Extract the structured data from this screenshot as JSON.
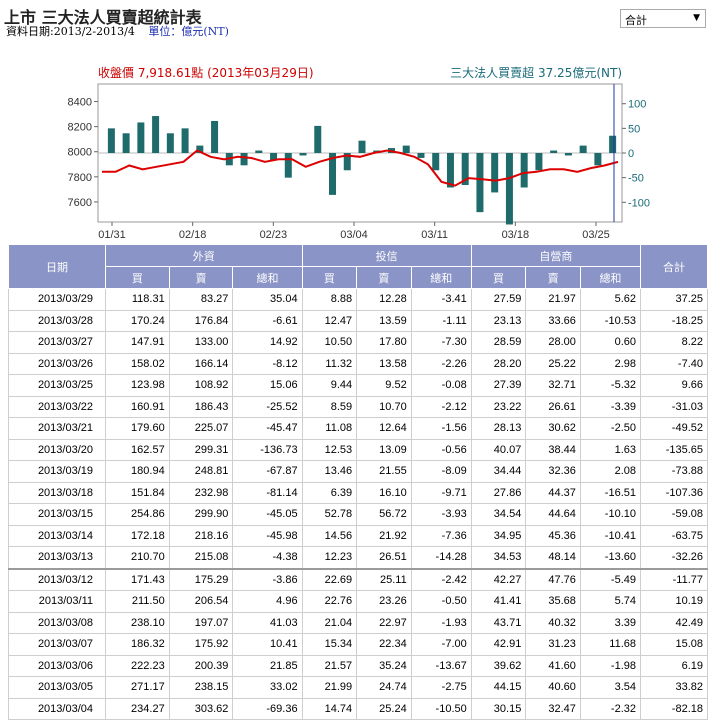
{
  "header": {
    "title": "上市 三大法人買賣超統計表",
    "date_range": "資料日期:2013/2-2013/4",
    "unit": "單位：億元(NT)",
    "select_value": "合計"
  },
  "chart_data": {
    "type": "bar",
    "left_legend": "收盤價 7,918.61點 (2013年03月29日)",
    "right_legend": "三大法人買賣超 37.25億元(NT)",
    "x_ticks": [
      "01/31",
      "02/18",
      "02/23",
      "03/04",
      "03/11",
      "03/18",
      "03/25"
    ],
    "left_axis": {
      "ticks": [
        8400,
        8200,
        8000,
        7800,
        7600
      ],
      "range": [
        7440,
        8540
      ]
    },
    "right_axis": {
      "ticks": [
        100,
        50,
        0,
        -50,
        -100
      ],
      "range": [
        -140,
        140
      ]
    },
    "bar_values": [
      50,
      40,
      62,
      75,
      40,
      50,
      15,
      65,
      -25,
      -25,
      5,
      -15,
      -50,
      -5,
      55,
      -85,
      -35,
      25,
      5,
      10,
      15,
      -10,
      -35,
      -70,
      -65,
      -120,
      -80,
      -145,
      -70,
      -35,
      5,
      -5,
      15,
      -25,
      35
    ],
    "price_values": [
      7840,
      7840,
      7890,
      7860,
      7880,
      7900,
      7920,
      8010,
      7960,
      7940,
      7960,
      7950,
      7920,
      7940,
      7940,
      7880,
      7920,
      7950,
      7970,
      7960,
      7990,
      8010,
      7990,
      7960,
      7900,
      7760,
      7730,
      7790,
      7780,
      7770,
      7790,
      7830,
      7840,
      7860,
      7860,
      7840,
      7870,
      7890,
      7919
    ],
    "colors": {
      "bar": "#1f6b6b",
      "price": "#dd0000",
      "left_legend": "#cc0000",
      "right_legend": "#1a6b7a"
    }
  },
  "table": {
    "groups": [
      "外資",
      "投信",
      "自營商"
    ],
    "col_date": "日期",
    "col_total": "合計",
    "subcols": [
      "買",
      "賣",
      "總和"
    ],
    "rows": [
      [
        "2013/03/29",
        "118.31",
        "83.27",
        "35.04",
        "8.88",
        "12.28",
        "-3.41",
        "27.59",
        "21.97",
        "5.62",
        "37.25"
      ],
      [
        "2013/03/28",
        "170.24",
        "176.84",
        "-6.61",
        "12.47",
        "13.59",
        "-1.11",
        "23.13",
        "33.66",
        "-10.53",
        "-18.25"
      ],
      [
        "2013/03/27",
        "147.91",
        "133.00",
        "14.92",
        "10.50",
        "17.80",
        "-7.30",
        "28.59",
        "28.00",
        "0.60",
        "8.22"
      ],
      [
        "2013/03/26",
        "158.02",
        "166.14",
        "-8.12",
        "11.32",
        "13.58",
        "-2.26",
        "28.20",
        "25.22",
        "2.98",
        "-7.40"
      ],
      [
        "2013/03/25",
        "123.98",
        "108.92",
        "15.06",
        "9.44",
        "9.52",
        "-0.08",
        "27.39",
        "32.71",
        "-5.32",
        "9.66"
      ],
      [
        "2013/03/22",
        "160.91",
        "186.43",
        "-25.52",
        "8.59",
        "10.70",
        "-2.12",
        "23.22",
        "26.61",
        "-3.39",
        "-31.03"
      ],
      [
        "2013/03/21",
        "179.60",
        "225.07",
        "-45.47",
        "11.08",
        "12.64",
        "-1.56",
        "28.13",
        "30.62",
        "-2.50",
        "-49.52"
      ],
      [
        "2013/03/20",
        "162.57",
        "299.31",
        "-136.73",
        "12.53",
        "13.09",
        "-0.56",
        "40.07",
        "38.44",
        "1.63",
        "-135.65"
      ],
      [
        "2013/03/19",
        "180.94",
        "248.81",
        "-67.87",
        "13.46",
        "21.55",
        "-8.09",
        "34.44",
        "32.36",
        "2.08",
        "-73.88"
      ],
      [
        "2013/03/18",
        "151.84",
        "232.98",
        "-81.14",
        "6.39",
        "16.10",
        "-9.71",
        "27.86",
        "44.37",
        "-16.51",
        "-107.36"
      ],
      [
        "2013/03/15",
        "254.86",
        "299.90",
        "-45.05",
        "52.78",
        "56.72",
        "-3.93",
        "34.54",
        "44.64",
        "-10.10",
        "-59.08"
      ],
      [
        "2013/03/14",
        "172.18",
        "218.16",
        "-45.98",
        "14.56",
        "21.92",
        "-7.36",
        "34.95",
        "45.36",
        "-10.41",
        "-63.75"
      ],
      [
        "2013/03/13",
        "210.70",
        "215.08",
        "-4.38",
        "12.23",
        "26.51",
        "-14.28",
        "34.53",
        "48.14",
        "-13.60",
        "-32.26"
      ],
      [
        "2013/03/12",
        "171.43",
        "175.29",
        "-3.86",
        "22.69",
        "25.11",
        "-2.42",
        "42.27",
        "47.76",
        "-5.49",
        "-11.77"
      ],
      [
        "2013/03/11",
        "211.50",
        "206.54",
        "4.96",
        "22.76",
        "23.26",
        "-0.50",
        "41.41",
        "35.68",
        "5.74",
        "10.19"
      ],
      [
        "2013/03/08",
        "238.10",
        "197.07",
        "41.03",
        "21.04",
        "22.97",
        "-1.93",
        "43.71",
        "40.32",
        "3.39",
        "42.49"
      ],
      [
        "2013/03/07",
        "186.32",
        "175.92",
        "10.41",
        "15.34",
        "22.34",
        "-7.00",
        "42.91",
        "31.23",
        "11.68",
        "15.08"
      ],
      [
        "2013/03/06",
        "222.23",
        "200.39",
        "21.85",
        "21.57",
        "35.24",
        "-13.67",
        "39.62",
        "41.60",
        "-1.98",
        "6.19"
      ],
      [
        "2013/03/05",
        "271.17",
        "238.15",
        "33.02",
        "21.99",
        "24.74",
        "-2.75",
        "44.15",
        "40.60",
        "3.54",
        "33.82"
      ],
      [
        "2013/03/04",
        "234.27",
        "303.62",
        "-69.36",
        "14.74",
        "25.24",
        "-10.50",
        "30.15",
        "32.47",
        "-2.32",
        "-82.18"
      ]
    ]
  }
}
